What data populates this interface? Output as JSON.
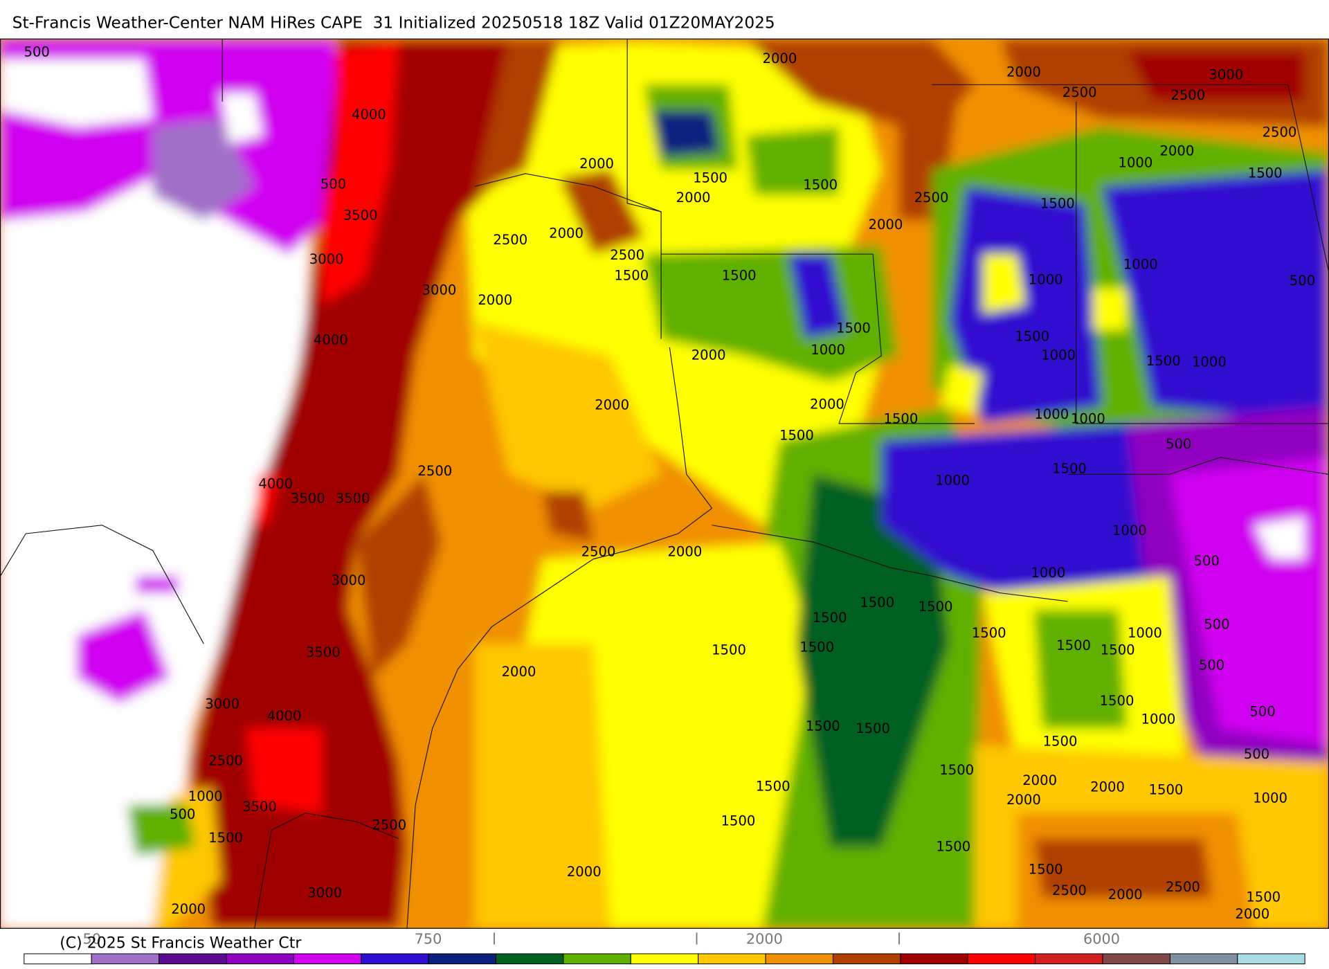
{
  "header": {
    "title": "St-Francis Weather-Center NAM HiRes CAPE  31 Initialized 20250518 18Z Valid 01Z20MAY2025"
  },
  "map": {
    "contour_labels": [
      "500",
      "4000",
      "500",
      "3500",
      "3000",
      "3000",
      "2500",
      "2000",
      "2000",
      "2500",
      "1500",
      "2000",
      "4000",
      "2000",
      "1500",
      "2000",
      "1500",
      "1500",
      "2000",
      "2500",
      "2500",
      "3000",
      "2500",
      "2000",
      "1000",
      "1500",
      "2500",
      "2000",
      "1500",
      "1000",
      "1000",
      "500",
      "1500",
      "1000",
      "2000",
      "1500",
      "1000",
      "1500",
      "1000",
      "2000",
      "2000",
      "1500",
      "1000",
      "1000",
      "1500",
      "500",
      "2500",
      "4000",
      "3500",
      "3500",
      "1500",
      "1000",
      "1000",
      "2500",
      "2000",
      "500",
      "3000",
      "1000",
      "1500",
      "1500",
      "1500",
      "1500",
      "1000",
      "500",
      "1500",
      "1500",
      "1500",
      "1500",
      "3500",
      "500",
      "2000",
      "1500",
      "3000",
      "4000",
      "1000",
      "500",
      "1500",
      "1500",
      "1500",
      "500",
      "2500",
      "1500",
      "2000",
      "2000",
      "1500",
      "2000",
      "1500",
      "1000",
      "3500",
      "1000",
      "500",
      "1500",
      "2500",
      "1500",
      "1500",
      "2000",
      "1500",
      "3000",
      "2500",
      "2000",
      "2500",
      "1500",
      "2000",
      "2000"
    ]
  },
  "colorbar": {
    "colors": [
      "#ffffff",
      "#a070c8",
      "#5c0a94",
      "#9000c0",
      "#d000f0",
      "#3010d0",
      "#0a2080",
      "#006020",
      "#60b000",
      "#ffff00",
      "#ffc800",
      "#f09000",
      "#b04000",
      "#a00000",
      "#ff0000",
      "#d02020",
      "#804848",
      "#8090a0",
      "#a8dce4"
    ],
    "labels": [
      "50",
      "750",
      "2000",
      "6000"
    ]
  },
  "footer": {
    "copyright": "(C) 2025 St Francis Weather Ctr"
  }
}
